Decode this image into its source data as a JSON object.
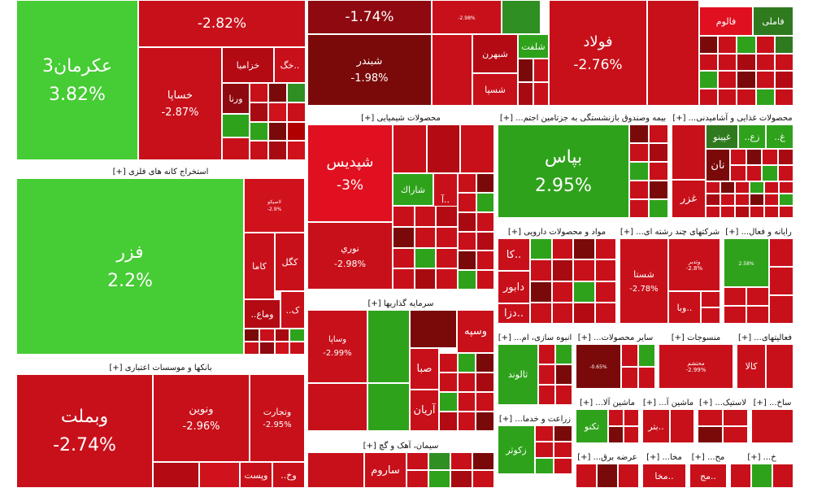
{
  "colors": {
    "dg": "#3bbf2a",
    "lg": "#2fa21c",
    "g": "#33a624",
    "dr": "#7a0a0a",
    "r": "#c8101a",
    "br": "#e01020",
    "mr": "#a80a12",
    "pr": "#d0121c"
  },
  "sectors": {
    "metal_mining": "استخراج کانه های فلزی [+]",
    "banks": "بانکها و موسسات اعتباری [+]",
    "chemicals": "محصولات شیمیایی [+]",
    "investments": "سرمایه گذاریها [+]",
    "cement": "سیمان، آهک و گچ [+]",
    "insurance": "بیمه وصندوق بازنشستگی به جزتامین اجتم... [+]",
    "food": "محصولات غذایی و آشامیدنی... [+]",
    "pharma": "مواد و محصولات دارویی [+]",
    "multi": "شرکتهای چند رشته ای... [+]",
    "it": "رایانه و فعال... [+]",
    "mass": "انبوه سازی، ام... [+]",
    "other_products": "سایر محصولات... [+]",
    "textile": "منسوجات [+]",
    "activities": "فعالیتهای... [+]",
    "machinery": "ماشین آلا... [+]",
    "machinery2": "ماشین آ... [+]",
    "plastic": "لاستیک... [+]",
    "const": "ساخ... [+]",
    "agri": "زراعت و خدما... [+]",
    "power": "عرضه برق... [+]",
    "misc1": "مح... [+]",
    "misc2": "مخا... [+]",
    "misc3": "خ... [+]"
  },
  "tiles": {
    "akarman": {
      "name": "عکرمان3",
      "pct": "3.82%"
    },
    "top2": {
      "name": "",
      "pct": "-2.82%"
    },
    "top3": {
      "name": "",
      "pct": "-1.74%"
    },
    "top4": {
      "name": "",
      "pct": "-2.98%"
    },
    "folad": {
      "name": "فولاد",
      "pct": "-2.76%"
    },
    "khaspa": {
      "name": "خساپا",
      "pct": "-2.87%"
    },
    "khazamia": {
      "name": "خزاميا",
      "pct": ""
    },
    "khag": {
      "name": "خگ..",
      "pct": ""
    },
    "varna": {
      "name": "ورنا",
      "pct": ""
    },
    "shabandar": {
      "name": "شبندر",
      "pct": "-1.98%"
    },
    "shebahran": {
      "name": "شبهرن",
      "pct": ""
    },
    "shesapa": {
      "name": "شسپا",
      "pct": ""
    },
    "shelaft": {
      "name": "شلفت",
      "pct": ""
    },
    "fameli": {
      "name": "فاملی",
      "pct": ""
    },
    "falvam": {
      "name": "فالوم",
      "pct": ""
    },
    "fezar": {
      "name": "فزر",
      "pct": "2.2%"
    },
    "lakima": {
      "name": "لاصیکو",
      "pct": "-2.9%"
    },
    "kama": {
      "name": "كاما",
      "pct": ""
    },
    "kogal": {
      "name": "کگل",
      "pct": ""
    },
    "kmoa": {
      "name": "..وماع",
      "pct": ""
    },
    "k": {
      "name": "..ک",
      "pct": ""
    },
    "vabmellat": {
      "name": "وبملت",
      "pct": "-2.74%"
    },
    "vanovin": {
      "name": "ونوین",
      "pct": "-2.96%"
    },
    "vetejarat": {
      "name": "وتجارت",
      "pct": "-2.95%"
    },
    "vposet": {
      "name": "وپست",
      "pct": ""
    },
    "vkh": {
      "name": "..وخ",
      "pct": ""
    },
    "shapdis": {
      "name": "شپدیس",
      "pct": "-3%"
    },
    "noori": {
      "name": "نوري",
      "pct": "-2.98%"
    },
    "sharak": {
      "name": "شاراك",
      "pct": ""
    },
    "a": {
      "name": "آ..",
      "pct": ""
    },
    "vasapa": {
      "name": "وساپا",
      "pct": "-2.99%"
    },
    "vesepah": {
      "name": "وسپه",
      "pct": ""
    },
    "saba": {
      "name": "صبا",
      "pct": ""
    },
    "arian": {
      "name": "آريان",
      "pct": ""
    },
    "savrom": {
      "name": "ساروم",
      "pct": ""
    },
    "bapas": {
      "name": "بپاس",
      "pct": "2.95%"
    },
    "naan": {
      "name": "نان",
      "pct": ""
    },
    "ghazar": {
      "name": "غزر",
      "pct": ""
    },
    "ghpino": {
      "name": "غپینو",
      "pct": ""
    },
    "ghz": {
      "name": "..زع",
      "pct": ""
    },
    "gh": {
      "name": "..غ",
      "pct": ""
    },
    "daboor": {
      "name": "دابور",
      "pct": ""
    },
    "ka": {
      "name": "كا..",
      "pct": ""
    },
    "dza": {
      "name": "دزا..",
      "pct": ""
    },
    "shasta": {
      "name": "شستا",
      "pct": "-2.78%"
    },
    "vabima": {
      "name": "وبا..",
      "pct": ""
    },
    "vadibar": {
      "name": "وتدبر",
      "pct": "-2.8%"
    },
    "it1": {
      "name": "",
      "pct": "2.58%"
    },
    "talvand": {
      "name": "ثالوند",
      "pct": ""
    },
    "lotus": {
      "name": "",
      "pct": "-0.65%"
    },
    "mohtasham": {
      "name": "محتشم",
      "pct": "-2.99%"
    },
    "kala": {
      "name": "كالا",
      "pct": ""
    },
    "takno": {
      "name": "تكنو",
      "pct": ""
    },
    "betr": {
      "name": "بتر..",
      "pct": ""
    },
    "zakovar": {
      "name": "زکوثر",
      "pct": ""
    },
    "mkha": {
      "name": "مخا..",
      "pct": ""
    },
    "mej": {
      "name": "مج..",
      "pct": ""
    }
  }
}
